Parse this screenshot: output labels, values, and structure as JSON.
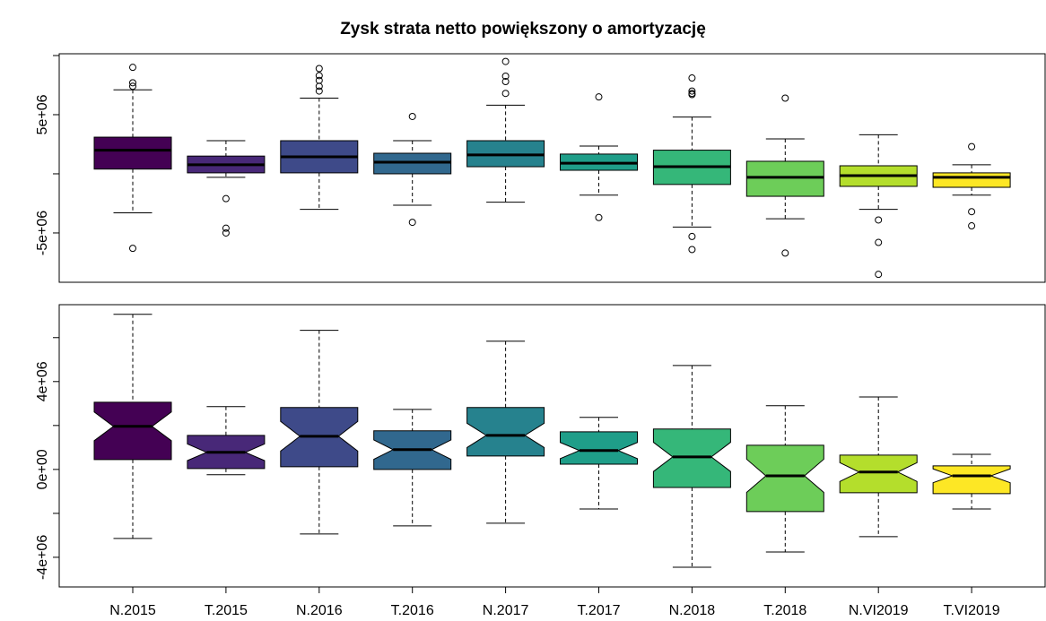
{
  "chart_data": [
    {
      "type": "boxplot",
      "title": "Zysk strata netto powiększony o amortyzację",
      "ylim": [
        -9170000,
        10150000
      ],
      "yticks": [
        {
          "value": -5000000,
          "label": "-5e+06"
        },
        {
          "value": 0,
          "label": null
        },
        {
          "value": 5000000,
          "label": "5e+06"
        },
        {
          "value": 10000000,
          "label": null
        }
      ],
      "colors": [
        "#440154",
        "#482878",
        "#3E4A89",
        "#31688E",
        "#26828E",
        "#1F9E89",
        "#35B779",
        "#6DCD59",
        "#B4DE2C",
        "#FDE725"
      ],
      "notch": false,
      "boxes": [
        {
          "low": -3300000,
          "q1": 400000,
          "median": 2000000,
          "q3": 3100000,
          "high": 7100000,
          "outliers": [
            9000000,
            7700000,
            7400000,
            -6300000
          ]
        },
        {
          "low": -300000,
          "q1": 80000,
          "median": 760000,
          "q3": 1500000,
          "high": 2800000,
          "outliers": [
            -2100000,
            -4600000,
            -5000000
          ]
        },
        {
          "low": -3000000,
          "q1": 80000,
          "median": 1440000,
          "q3": 2800000,
          "high": 6400000,
          "outliers": [
            8900000,
            8300000,
            7900000,
            7400000,
            7000000
          ]
        },
        {
          "low": -2650000,
          "q1": 0,
          "median": 980000,
          "q3": 1740000,
          "high": 2800000,
          "outliers": [
            4850000,
            -4100000
          ]
        },
        {
          "low": -2400000,
          "q1": 600000,
          "median": 1600000,
          "q3": 2800000,
          "high": 5800000,
          "outliers": [
            9500000,
            8260000,
            7800000,
            6800000
          ]
        },
        {
          "low": -1800000,
          "q1": 300000,
          "median": 900000,
          "q3": 1670000,
          "high": 2350000,
          "outliers": [
            6500000,
            -3700000
          ]
        },
        {
          "low": -4500000,
          "q1": -900000,
          "median": 600000,
          "q3": 2000000,
          "high": 4800000,
          "outliers": [
            8100000,
            7000000,
            6800000,
            6700000,
            -5300000,
            -6400000
          ]
        },
        {
          "low": -3800000,
          "q1": -1900000,
          "median": -300000,
          "q3": 1060000,
          "high": 2950000,
          "outliers": [
            6400000,
            -6700000
          ]
        },
        {
          "low": -3000000,
          "q1": -1060000,
          "median": -150000,
          "q3": 680000,
          "high": 3300000,
          "outliers": [
            -3900000,
            -5800000,
            -8500000
          ]
        },
        {
          "low": -1800000,
          "q1": -1140000,
          "median": -300000,
          "q3": 80000,
          "high": 760000,
          "outliers": [
            2300000,
            -3200000,
            -4400000
          ]
        }
      ]
    },
    {
      "type": "boxplot",
      "categories": [
        "N.2015",
        "T.2015",
        "N.2016",
        "T.2016",
        "N.2017",
        "T.2017",
        "N.2018",
        "T.2018",
        "N.VI2019",
        "T.VI2019"
      ],
      "ylim": [
        -5350000,
        7500000
      ],
      "yticks": [
        {
          "value": -4000000,
          "label": "-4e+06"
        },
        {
          "value": -2000000,
          "label": null
        },
        {
          "value": 0,
          "label": "0e+00"
        },
        {
          "value": 2000000,
          "label": null
        },
        {
          "value": 4000000,
          "label": "4e+06"
        },
        {
          "value": 6000000,
          "label": null
        }
      ],
      "colors": [
        "#440154",
        "#482878",
        "#3E4A89",
        "#31688E",
        "#26828E",
        "#1F9E89",
        "#35B779",
        "#6DCD59",
        "#B4DE2C",
        "#FDE725"
      ],
      "notch": true,
      "boxes": [
        {
          "low": -3140000,
          "q1": 450000,
          "median": 1960000,
          "q3": 3060000,
          "high": 7060000
        },
        {
          "low": -240000,
          "q1": 40000,
          "median": 780000,
          "q3": 1550000,
          "high": 2860000
        },
        {
          "low": -2940000,
          "q1": 120000,
          "median": 1510000,
          "q3": 2820000,
          "high": 6330000
        },
        {
          "low": -2570000,
          "q1": 0,
          "median": 900000,
          "q3": 1760000,
          "high": 2730000
        },
        {
          "low": -2450000,
          "q1": 610000,
          "median": 1550000,
          "q3": 2820000,
          "high": 5840000
        },
        {
          "low": -1800000,
          "q1": 240000,
          "median": 860000,
          "q3": 1710000,
          "high": 2370000
        },
        {
          "low": -4450000,
          "q1": -820000,
          "median": 570000,
          "q3": 1840000,
          "high": 4730000
        },
        {
          "low": -3760000,
          "q1": -1920000,
          "median": -290000,
          "q3": 1100000,
          "high": 2900000
        },
        {
          "low": -3060000,
          "q1": -1060000,
          "median": -120000,
          "q3": 650000,
          "high": 3300000
        },
        {
          "low": -1800000,
          "q1": -1100000,
          "median": -290000,
          "q3": 160000,
          "high": 690000
        }
      ]
    }
  ]
}
